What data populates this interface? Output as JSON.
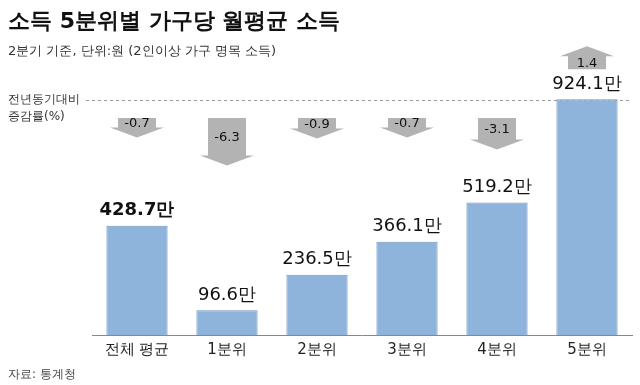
{
  "chart_data": {
    "type": "bar",
    "title": "소득 5분위별 가구당 월평균 소득",
    "subtitle": "2분기 기준, 단위:원 (2인이상 가구 명목 소득)",
    "categories": [
      "전체 평균",
      "1분위",
      "2분위",
      "3분위",
      "4분위",
      "5분위"
    ],
    "values": [
      428.7,
      96.6,
      236.5,
      366.1,
      519.2,
      924.1
    ],
    "value_labels": [
      "428.7만",
      "96.6만",
      "236.5만",
      "366.1만",
      "519.2만",
      "924.1만"
    ],
    "data_labels": true,
    "color": "#8fb4dc",
    "ylim": [
      0,
      1000
    ],
    "tick_labels": "x",
    "grid": false,
    "changes": {
      "title": [
        "전년동기대비",
        "증감률(%)"
      ],
      "values": [
        -0.7,
        -6.3,
        -0.9,
        -0.7,
        -3.1,
        1.4
      ]
    },
    "source": "자료: 통계청"
  }
}
